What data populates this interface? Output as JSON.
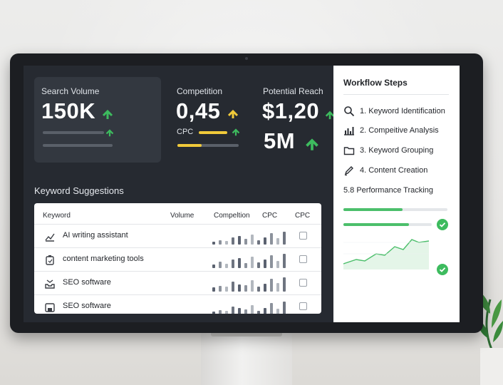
{
  "stats": {
    "search_volume": {
      "label": "Search Volume",
      "value": "150K",
      "progress": 0.7
    },
    "competition": {
      "label": "Competition",
      "value": "0,45",
      "cpc_label": "CPC",
      "cpc_progress": 0.4
    },
    "potential_reach": {
      "label": "Potential Reach",
      "value_line1": "$1,20",
      "value_line2": "5M"
    }
  },
  "keyword_suggestions": {
    "title": "Keyword Suggestions",
    "columns": [
      "Keyword",
      "Volume",
      "Compeltion",
      "CPC",
      "CPC"
    ],
    "rows": [
      {
        "icon": "chart-line-icon",
        "keyword": "AI writing assistant"
      },
      {
        "icon": "clipboard-icon",
        "keyword": "content marketing tools"
      },
      {
        "icon": "inbox-icon",
        "keyword": "SEO software"
      },
      {
        "icon": "save-disk-icon",
        "keyword": "SEO software"
      }
    ]
  },
  "workflow": {
    "title": "Workflow Steps",
    "steps": [
      {
        "icon": "search-icon",
        "label": "1. Keyword Identification"
      },
      {
        "icon": "bar-chart-icon",
        "label": "2. Compeitive Analysis"
      },
      {
        "icon": "folder-icon",
        "label": "3. Keyword Grouping"
      },
      {
        "icon": "pencil-icon",
        "label": "4. Content Creation"
      },
      {
        "icon": "",
        "label": "5.8 Performance Tracking"
      }
    ],
    "progress": [
      0.57,
      0.74
    ]
  },
  "colors": {
    "accent_green": "#3dbb5e",
    "accent_yellow": "#f0c93a",
    "panel_bg": "#ffffff",
    "dashboard_bg": "#262a31"
  }
}
